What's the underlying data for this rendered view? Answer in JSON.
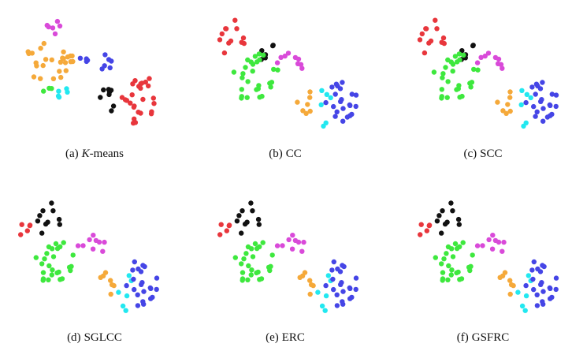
{
  "figure": {
    "panels": [
      {
        "label": "(a)",
        "name": [
          {
            "text": "K",
            "italic": true
          },
          {
            "text": "-means"
          }
        ]
      },
      {
        "label": "(b)",
        "name": [
          {
            "text": "CC"
          }
        ]
      },
      {
        "label": "(c)",
        "name": [
          {
            "text": "SCC"
          }
        ]
      },
      {
        "label": "(d)",
        "name": [
          {
            "text": "SGLCC"
          }
        ]
      },
      {
        "label": "(e)",
        "name": [
          {
            "text": "ERC"
          }
        ]
      },
      {
        "label": "(f)",
        "name": [
          {
            "text": "GSFRC"
          }
        ]
      }
    ]
  }
}
